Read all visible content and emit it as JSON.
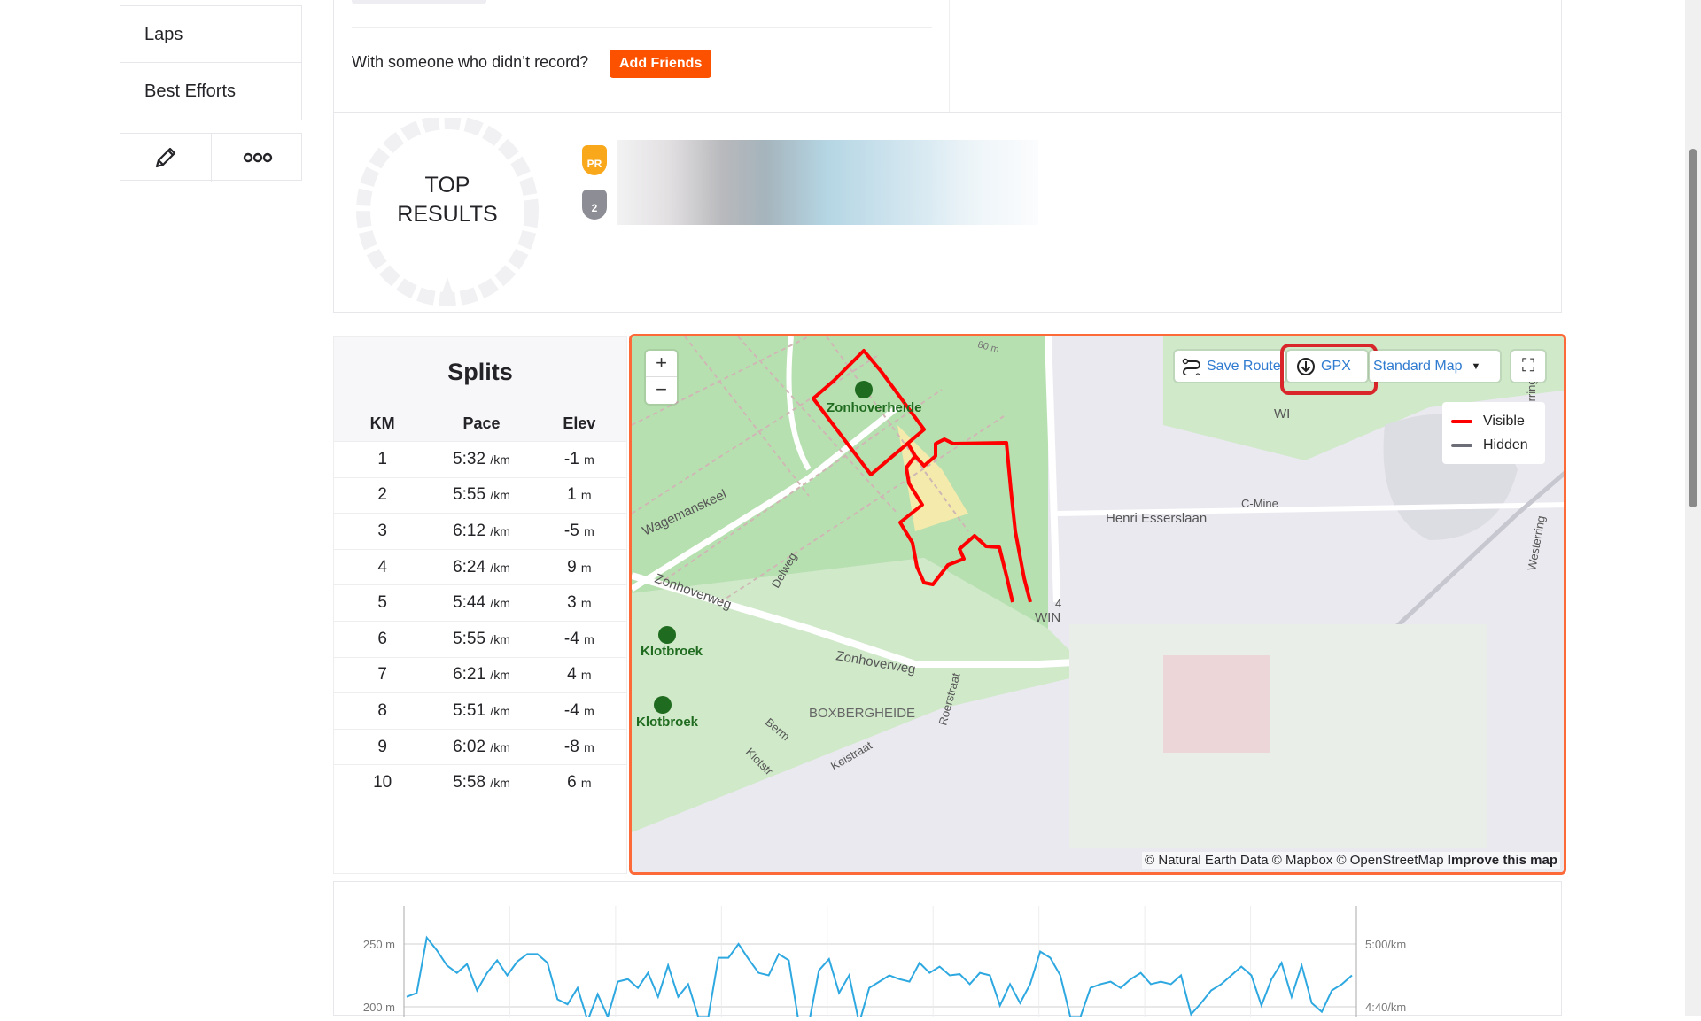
{
  "sidebar": {
    "items": [
      {
        "label": "Laps"
      },
      {
        "label": "Best Efforts"
      }
    ],
    "edit_icon": "pencil-icon",
    "more_icon": "more-dots-icon"
  },
  "friends": {
    "prompt": "With someone who didn’t record?",
    "button": "Add Friends"
  },
  "top_results": {
    "title_line1": "TOP",
    "title_line2": "RESULTS",
    "badges": [
      "PR",
      "2"
    ]
  },
  "splits": {
    "title": "Splits",
    "headers": [
      "KM",
      "Pace",
      "Elev"
    ],
    "pace_unit": "/km",
    "elev_unit": "m",
    "rows": [
      [
        "1",
        "5:32",
        "-1"
      ],
      [
        "2",
        "5:55",
        "1"
      ],
      [
        "3",
        "6:12",
        "-5"
      ],
      [
        "4",
        "6:24",
        "9"
      ],
      [
        "5",
        "5:44",
        "3"
      ],
      [
        "6",
        "5:55",
        "-4"
      ],
      [
        "7",
        "6:21",
        "4"
      ],
      [
        "8",
        "5:51",
        "-4"
      ],
      [
        "9",
        "6:02",
        "-8"
      ],
      [
        "10",
        "5:58",
        "6"
      ]
    ]
  },
  "map": {
    "zoom_in": "+",
    "zoom_out": "−",
    "save_route": "Save Route",
    "gpx": "GPX",
    "map_style": "Standard Map",
    "legend": [
      {
        "label": "Visible",
        "color": "#ff0000"
      },
      {
        "label": "Hidden",
        "color": "#6d6d78"
      }
    ],
    "labels": [
      "Zonhoverheide",
      "Wagemanskeel",
      "Zonhoverweg",
      "Zonhoverweg",
      "Delweg",
      "Klotbroek",
      "Klotbroek",
      "BOXBERGHEIDE",
      "Roerstraat",
      "Berm",
      "Klotstr",
      "Keistraat",
      "Henri Esserslaan",
      "C-Mine",
      "Westerring",
      "Westerring",
      "80 m",
      "WI",
      "WIN",
      "4"
    ],
    "attribution": "© Natural Earth Data © Mapbox © OpenStreetMap",
    "improve": "Improve this map",
    "route_color": "#ff0000",
    "highlight_color": "#d9262b"
  },
  "chart_data": {
    "type": "line",
    "left_ticks": [
      "250 m",
      "200 m"
    ],
    "right_ticks": [
      "5:00/km",
      "4:40/km"
    ],
    "series_color": "#2ea8e0",
    "elevation_m": [
      208,
      211,
      255,
      245,
      233,
      227,
      234,
      213,
      227,
      237,
      225,
      236,
      242,
      242,
      235,
      206,
      202,
      215,
      189,
      210,
      192,
      220,
      222,
      215,
      227,
      208,
      233,
      208,
      218,
      192,
      192,
      239,
      239,
      250,
      238,
      227,
      225,
      242,
      237,
      187,
      187,
      229,
      238,
      211,
      225,
      187,
      215,
      220,
      225,
      222,
      220,
      235,
      227,
      232,
      225,
      226,
      218,
      227,
      225,
      201,
      218,
      203,
      218,
      244,
      239,
      225,
      192,
      192,
      215,
      218,
      220,
      215,
      222,
      227,
      218,
      220,
      218,
      225,
      194,
      203,
      213,
      218,
      225,
      232,
      225,
      201,
      222,
      235,
      208,
      233,
      203,
      196,
      213,
      218,
      225
    ]
  }
}
